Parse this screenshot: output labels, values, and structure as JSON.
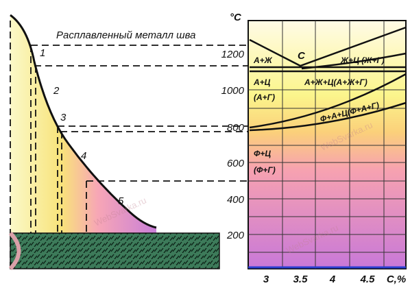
{
  "header": {
    "unit": "°C"
  },
  "left": {
    "molten_label": "Расплавленный металл шва",
    "zones": [
      "1",
      "2",
      "3",
      "4",
      "5"
    ]
  },
  "diagram": {
    "point_c": "C",
    "regions": [
      "А+Ж",
      "Ж+Ц (Ж+Г)",
      "А+Ц",
      "(А+Г)",
      "А+Ж+Ц(А+Ж+Г)",
      "Ф+А+Ц(Ф+А+Г)",
      "Ф+Ц",
      "(Ф+Г)"
    ],
    "y_labels": [
      "1200",
      "1000",
      "800",
      "600",
      "400",
      "200"
    ],
    "x_labels": [
      "3",
      "3.5",
      "4",
      "4.5",
      "C,%"
    ]
  },
  "watermark": "WebSvarka.ru"
}
